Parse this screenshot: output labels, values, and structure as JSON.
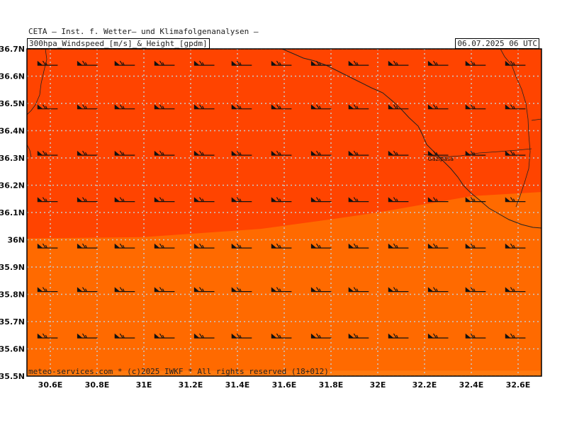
{
  "header": {
    "title": "CETA — Inst. f. Wetter— und Klimafolgenanalysen —",
    "subtitle": "300hpa_Windspeed_[m/s]_&_Height_[gpdm]",
    "datetime": "06.07.2025 06 UTC"
  },
  "footer": {
    "copyright": "meteo-services.com * (c)2025 IWKF * All rights reserved (18+012)"
  },
  "map": {
    "lon_range": [
      30.5,
      32.7
    ],
    "lat_range": [
      35.5,
      36.7
    ],
    "lon_ticks": [
      30.6,
      30.8,
      31.0,
      31.2,
      31.4,
      31.6,
      31.8,
      32.0,
      32.2,
      32.4,
      32.6
    ],
    "lon_labels": [
      "30.6E",
      "30.8E",
      "31E",
      "31.2E",
      "31.4E",
      "31.6E",
      "31.8E",
      "32E",
      "32.2E",
      "32.4E",
      "32.6E"
    ],
    "lat_ticks": [
      35.5,
      35.6,
      35.7,
      35.8,
      35.9,
      36.0,
      36.1,
      36.2,
      36.3,
      36.4,
      36.5,
      36.6,
      36.7
    ],
    "lat_labels": [
      "35.5N",
      "35.6N",
      "35.7N",
      "35.8N",
      "35.9N",
      "36N",
      "36.1N",
      "36.2N",
      "36.3N",
      "36.4N",
      "36.5N",
      "36.6N",
      "36.7N"
    ],
    "grid": true,
    "colors": {
      "upper_band": "#ff4400",
      "lower_band": "#ff6a00",
      "bottom_band": "#ff7a10",
      "grid": "#c8c8c8",
      "coast": "#222222"
    },
    "band_boundary": [
      [
        30.5,
        36.005
      ],
      [
        31.0,
        36.01
      ],
      [
        31.5,
        36.04
      ],
      [
        31.8,
        36.075
      ],
      [
        32.0,
        36.1
      ],
      [
        32.2,
        36.13
      ],
      [
        32.4,
        36.16
      ],
      [
        32.7,
        36.175
      ]
    ],
    "bottom_band_top_lat": 35.52,
    "city": {
      "name": "Gazipasa",
      "lon": 32.25,
      "lat": 36.29
    },
    "wind_barb_lons": [
      30.58,
      30.75,
      30.91,
      31.08,
      31.25,
      31.41,
      31.58,
      31.75,
      31.91,
      32.08,
      32.25,
      32.41,
      32.58
    ],
    "wind_barb_lats": [
      36.64,
      36.48,
      36.31,
      36.14,
      35.97,
      35.81,
      35.64
    ],
    "wind_direction": "westerly"
  }
}
